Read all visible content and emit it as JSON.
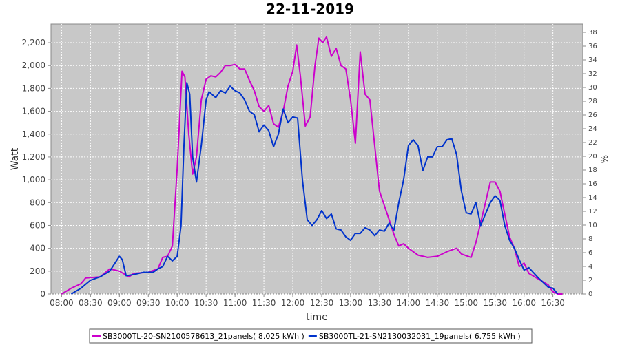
{
  "chart_data": {
    "type": "line",
    "title": "22-11-2019",
    "x_label": "time",
    "y_label": "Watt",
    "y2_label": "%",
    "xlim": [
      "07:49",
      "17:01"
    ],
    "xticks": [
      "08:00",
      "08:30",
      "09:00",
      "09:30",
      "10:00",
      "10:30",
      "11:00",
      "11:30",
      "12:00",
      "12:30",
      "13:00",
      "13:30",
      "14:00",
      "14:30",
      "15:00",
      "15:30",
      "16:00",
      "16:30"
    ],
    "ylim": [
      0,
      2363
    ],
    "yticks": [
      0,
      200,
      400,
      600,
      800,
      {
        "value": 1000,
        "label": "1,000"
      },
      {
        "value": 1200,
        "label": "1,200"
      },
      {
        "value": 1400,
        "label": "1,400"
      },
      {
        "value": 1600,
        "label": "1,600"
      },
      {
        "value": 1800,
        "label": "1,800"
      },
      {
        "value": 2000,
        "label": "2,000"
      },
      {
        "value": 2200,
        "label": "2,200"
      }
    ],
    "y2lim": [
      0,
      39.2
    ],
    "y2ticks": [
      0,
      2,
      4,
      6,
      8,
      10,
      12,
      14,
      16,
      18,
      20,
      22,
      24,
      26,
      28,
      30,
      32,
      34,
      36,
      38
    ],
    "grid": true,
    "series": [
      {
        "name": "SB3000TL-20-SN2100578613_21panels( 8.025 kWh )",
        "color": "#cc00cc",
        "x": [
          "08:00",
          "08:10",
          "08:20",
          "08:25",
          "08:40",
          "08:50",
          "09:00",
          "09:10",
          "09:15",
          "09:30",
          "09:40",
          "09:45",
          "09:50",
          "09:55",
          "10:00",
          "10:05",
          "10:08",
          "10:12",
          "10:16",
          "10:20",
          "10:25",
          "10:30",
          "10:35",
          "10:40",
          "10:45",
          "10:50",
          "10:55",
          "11:00",
          "11:05",
          "11:10",
          "11:15",
          "11:20",
          "11:25",
          "11:30",
          "11:35",
          "11:40",
          "11:45",
          "11:50",
          "11:55",
          "12:00",
          "12:04",
          "12:08",
          "12:13",
          "12:18",
          "12:23",
          "12:27",
          "12:31",
          "12:35",
          "12:40",
          "12:45",
          "12:50",
          "12:55",
          "13:00",
          "13:05",
          "13:10",
          "13:15",
          "13:20",
          "13:25",
          "13:30",
          "13:40",
          "13:45",
          "13:50",
          "13:55",
          "14:00",
          "14:10",
          "14:20",
          "14:30",
          "14:40",
          "14:50",
          "14:55",
          "15:05",
          "15:10",
          "15:20",
          "15:25",
          "15:30",
          "15:35",
          "15:40",
          "15:45",
          "15:50",
          "15:55",
          "16:00",
          "16:05",
          "16:15",
          "16:25",
          "16:30",
          "16:35",
          "16:40"
        ],
        "values": [
          0,
          50,
          90,
          140,
          150,
          220,
          200,
          150,
          180,
          190,
          220,
          320,
          330,
          420,
          1100,
          1950,
          1900,
          1400,
          1050,
          1200,
          1700,
          1880,
          1910,
          1900,
          1940,
          2000,
          2000,
          2010,
          1970,
          1970,
          1870,
          1780,
          1640,
          1600,
          1650,
          1490,
          1460,
          1600,
          1820,
          1950,
          2180,
          1900,
          1470,
          1550,
          2000,
          2240,
          2200,
          2250,
          2080,
          2150,
          2000,
          1970,
          1700,
          1320,
          2120,
          1750,
          1700,
          1300,
          900,
          650,
          520,
          420,
          440,
          400,
          340,
          320,
          330,
          370,
          400,
          350,
          320,
          450,
          800,
          980,
          980,
          900,
          700,
          500,
          400,
          240,
          270,
          180,
          130,
          80,
          20,
          0,
          0
        ]
      },
      {
        "name": "SB3000TL-21-SN2130032031_19panels( 6.755 kWh )",
        "color": "#0033cc",
        "x": [
          "08:10",
          "08:20",
          "08:30",
          "08:40",
          "08:50",
          "09:00",
          "09:03",
          "09:07",
          "09:15",
          "09:25",
          "09:35",
          "09:40",
          "09:45",
          "09:50",
          "09:55",
          "10:00",
          "10:04",
          "10:07",
          "10:10",
          "10:13",
          "10:16",
          "10:20",
          "10:25",
          "10:30",
          "10:33",
          "10:40",
          "10:45",
          "10:50",
          "10:55",
          "11:00",
          "11:05",
          "11:10",
          "11:15",
          "11:20",
          "11:25",
          "11:30",
          "11:35",
          "11:40",
          "11:45",
          "11:50",
          "11:55",
          "12:00",
          "12:05",
          "12:10",
          "12:15",
          "12:20",
          "12:25",
          "12:30",
          "12:35",
          "12:40",
          "12:45",
          "12:50",
          "12:55",
          "13:00",
          "13:05",
          "13:10",
          "13:15",
          "13:20",
          "13:25",
          "13:30",
          "13:35",
          "13:40",
          "13:45",
          "13:50",
          "13:55",
          "14:00",
          "14:05",
          "14:10",
          "14:15",
          "14:20",
          "14:25",
          "14:30",
          "14:35",
          "14:40",
          "14:45",
          "14:50",
          "14:55",
          "15:00",
          "15:05",
          "15:10",
          "15:15",
          "15:20",
          "15:25",
          "15:30",
          "15:35",
          "15:40",
          "15:45",
          "15:50",
          "15:55",
          "16:00",
          "16:05",
          "16:15",
          "16:25",
          "16:30",
          "16:35"
        ],
        "values": [
          0,
          50,
          120,
          150,
          200,
          330,
          300,
          160,
          170,
          190,
          190,
          220,
          240,
          330,
          290,
          330,
          600,
          1300,
          1850,
          1750,
          1200,
          980,
          1300,
          1700,
          1770,
          1720,
          1780,
          1760,
          1820,
          1780,
          1760,
          1700,
          1600,
          1570,
          1420,
          1480,
          1430,
          1290,
          1400,
          1620,
          1500,
          1550,
          1540,
          1000,
          650,
          600,
          650,
          730,
          660,
          700,
          570,
          560,
          500,
          470,
          530,
          530,
          580,
          560,
          510,
          560,
          550,
          620,
          560,
          800,
          1000,
          1300,
          1350,
          1300,
          1080,
          1200,
          1200,
          1290,
          1290,
          1350,
          1360,
          1220,
          900,
          710,
          700,
          800,
          600,
          700,
          800,
          860,
          820,
          600,
          470,
          400,
          300,
          210,
          230,
          140,
          60,
          50,
          0
        ]
      }
    ]
  }
}
